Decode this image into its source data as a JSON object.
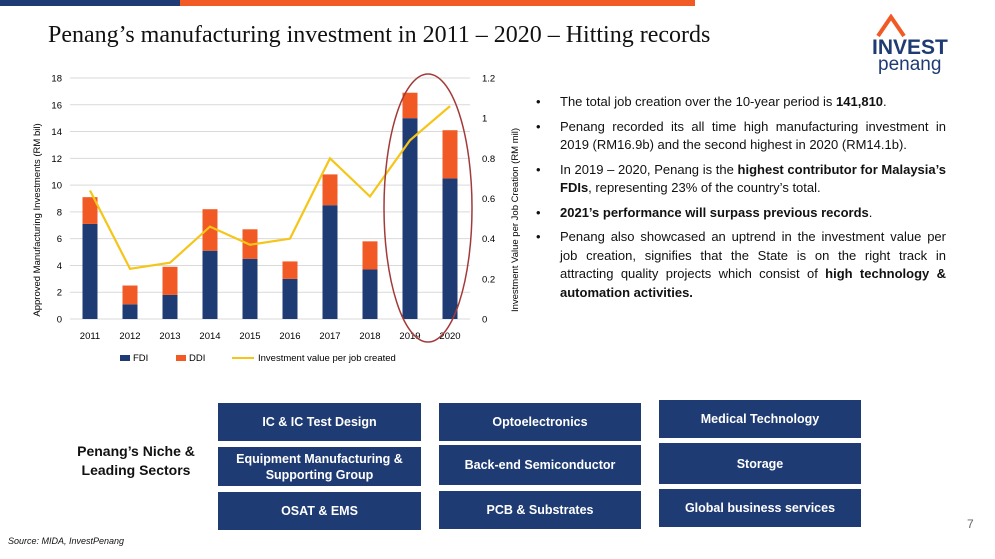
{
  "title": "Penang’s manufacturing investment in 2011 – 2020 – Hitting records",
  "logo": {
    "line1": "INVEST",
    "line2": "penang"
  },
  "chart_data": {
    "type": "bar",
    "stacked": true,
    "categories": [
      "2011",
      "2012",
      "2013",
      "2014",
      "2015",
      "2016",
      "2017",
      "2018",
      "2019",
      "2020"
    ],
    "series": [
      {
        "name": "FDI",
        "color": "#1f3b73",
        "values": [
          7.1,
          1.1,
          1.8,
          5.1,
          4.5,
          3.0,
          8.5,
          3.7,
          15.0,
          10.5
        ]
      },
      {
        "name": "DDI",
        "color": "#f15a24",
        "values": [
          2.0,
          1.4,
          2.1,
          3.1,
          2.2,
          1.3,
          2.3,
          2.1,
          1.9,
          3.6
        ]
      }
    ],
    "line_series": {
      "name": "Investment value per job created",
      "color": "#f5c518",
      "values": [
        0.64,
        0.25,
        0.28,
        0.46,
        0.37,
        0.4,
        0.8,
        0.61,
        0.89,
        1.06
      ]
    },
    "ylabel": "Approved Manufacturing Investments (RM bil)",
    "y2label": "Investment Value per Job Creation (RM mil)",
    "ylim": [
      0,
      18
    ],
    "y2lim": [
      0,
      1.2
    ],
    "yticks": [
      "0",
      "2",
      "4",
      "6",
      "8",
      "10",
      "12",
      "14",
      "16",
      "18"
    ],
    "y2ticks": [
      "0",
      "0.2",
      "0.4",
      "0.6",
      "0.8",
      "1",
      "1.2"
    ],
    "grid": true,
    "legend": "bottom",
    "highlight": "ellipse around 2019 – 2020"
  },
  "bullets": [
    [
      {
        "t": "The total job creation over the 10-year period is "
      },
      {
        "t": "141,810",
        "b": true
      },
      {
        "t": "."
      }
    ],
    [
      {
        "t": "Penang recorded its all time high manufacturing investment in 2019 (RM16.9b) and the second highest in 2020 (RM14.1b)."
      }
    ],
    [
      {
        "t": "In 2019 – 2020, Penang is the "
      },
      {
        "t": "highest contributor for Malaysia’s FDIs",
        "b": true
      },
      {
        "t": ", representing 23% of the country’s total."
      }
    ],
    [
      {
        "t": "2021’s performance will surpass previous records",
        "b": true
      },
      {
        "t": "."
      }
    ],
    [
      {
        "t": "Penang also showcased an uptrend in the investment value per job creation, signifies that the State is on the right track in attracting quality projects which consist of "
      },
      {
        "t": "high technology & automation activities.",
        "b": true
      }
    ]
  ],
  "niche": {
    "label": "Penang’s Niche & Leading Sectors",
    "sectors": [
      "IC & IC Test Design",
      "Optoelectronics",
      "Medical Technology",
      "Equipment Manufacturing & Supporting Group",
      "Back-end Semiconductor",
      "Storage",
      "OSAT & EMS",
      "PCB & Substrates",
      "Global business services"
    ]
  },
  "source": "Source: MIDA, InvestPenang",
  "page_number": "7"
}
